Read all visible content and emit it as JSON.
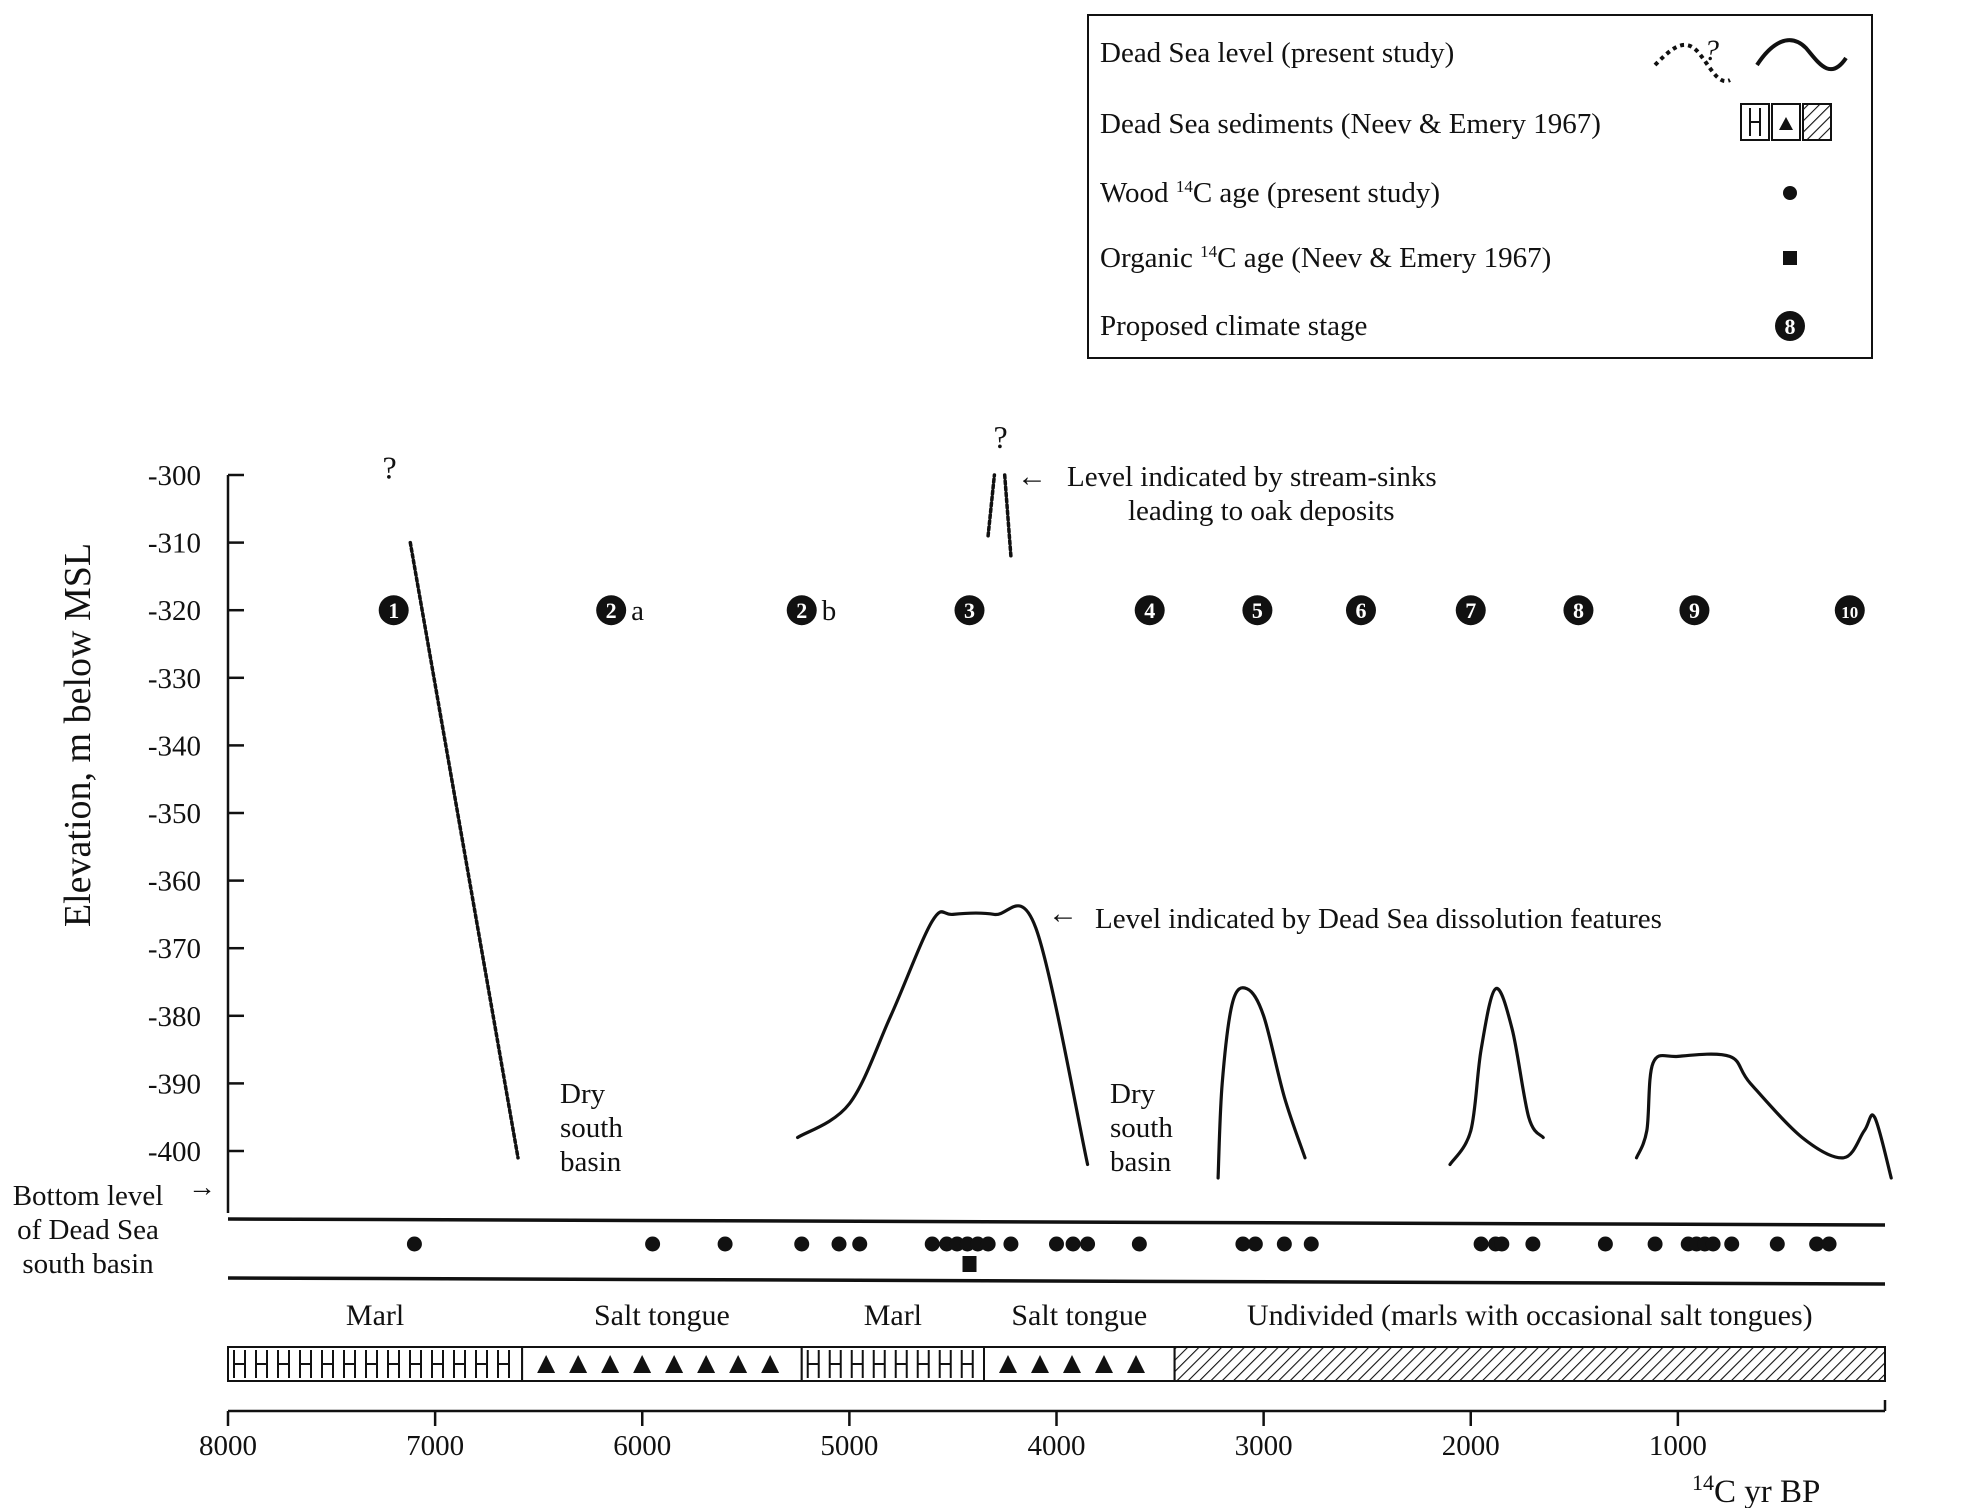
{
  "chart_data": {
    "type": "line",
    "title": "",
    "ylabel": "Elevation, m below MSL",
    "xlabel_main": "14",
    "xlabel_rest": "C yr BP",
    "xlim": [
      8000,
      0
    ],
    "ylim": [
      -300,
      -400
    ],
    "grid": false,
    "x_ticks": [
      "8000",
      "7000",
      "6000",
      "5000",
      "4000",
      "3000",
      "2000",
      "1000"
    ],
    "y_ticks": [
      "-300",
      "-310",
      "-320",
      "-330",
      "-340",
      "-350",
      "-360",
      "-370",
      "-380",
      "-390",
      "-400"
    ],
    "legend": {
      "placement": "top-right",
      "entries": [
        {
          "label": "Dead Sea level (present study)",
          "symbol": "wave-dashed-and-solid",
          "mark": "?"
        },
        {
          "label": "Dead Sea sediments (Neev & Emery 1967)",
          "symbol": "sediment-boxes"
        },
        {
          "label": "Wood 14C age (present study)",
          "symbol": "circle"
        },
        {
          "label": "Organic 14C age (Neev & Emery 1967)",
          "symbol": "square"
        },
        {
          "label": "Proposed climate stage",
          "symbol": "numbered-circle",
          "mark": "8"
        }
      ]
    },
    "level_curves": [
      {
        "style": "dashed",
        "points": [
          [
            7120,
            -310
          ],
          [
            6600,
            -401
          ]
        ]
      },
      {
        "style": "dashed",
        "points": [
          [
            4330,
            -309
          ],
          [
            4300,
            -300
          ]
        ]
      },
      {
        "style": "dashed",
        "points": [
          [
            4250,
            -300
          ],
          [
            4220,
            -312
          ]
        ]
      },
      {
        "style": "solid",
        "points": [
          [
            5250,
            -398
          ],
          [
            5000,
            -393
          ],
          [
            4800,
            -380
          ],
          [
            4600,
            -366
          ],
          [
            4500,
            -365
          ],
          [
            4300,
            -365
          ],
          [
            4100,
            -367
          ],
          [
            3850,
            -402
          ]
        ]
      },
      {
        "style": "solid",
        "points": [
          [
            3220,
            -404
          ],
          [
            3200,
            -390
          ],
          [
            3150,
            -378
          ],
          [
            3080,
            -376
          ],
          [
            3000,
            -380
          ],
          [
            2900,
            -392
          ],
          [
            2800,
            -401
          ]
        ]
      },
      {
        "style": "solid",
        "points": [
          [
            2100,
            -402
          ],
          [
            2000,
            -397
          ],
          [
            1950,
            -385
          ],
          [
            1880,
            -376
          ],
          [
            1800,
            -382
          ],
          [
            1720,
            -395
          ],
          [
            1650,
            -398
          ]
        ]
      },
      {
        "style": "solid",
        "points": [
          [
            1200,
            -401
          ],
          [
            1150,
            -397
          ],
          [
            1120,
            -387
          ],
          [
            1000,
            -386
          ],
          [
            750,
            -386
          ],
          [
            650,
            -390
          ],
          [
            400,
            -398
          ],
          [
            200,
            -401
          ],
          [
            100,
            -397
          ],
          [
            50,
            -395
          ],
          [
            -30,
            -404
          ]
        ]
      }
    ],
    "curve_marks": [
      {
        "text": "?",
        "x": 7220,
        "y": -300.5
      },
      {
        "text": "?",
        "x": 4270,
        "y": -296
      }
    ],
    "climate_stages": [
      {
        "label": "1",
        "suffix": "",
        "x": 7200
      },
      {
        "label": "2",
        "suffix": "a",
        "x": 6150
      },
      {
        "label": "2",
        "suffix": "b",
        "x": 5230
      },
      {
        "label": "3",
        "suffix": "",
        "x": 4420
      },
      {
        "label": "4",
        "suffix": "",
        "x": 3550
      },
      {
        "label": "5",
        "suffix": "",
        "x": 3030
      },
      {
        "label": "6",
        "suffix": "",
        "x": 2530
      },
      {
        "label": "7",
        "suffix": "",
        "x": 2000
      },
      {
        "label": "8",
        "suffix": "",
        "x": 1480
      },
      {
        "label": "9",
        "suffix": "",
        "x": 920
      },
      {
        "label": "10",
        "suffix": "",
        "x": 170
      }
    ],
    "climate_stage_y": -320,
    "wood_ages": [
      7100,
      5950,
      5600,
      5230,
      5050,
      4950,
      4600,
      4530,
      4480,
      4430,
      4380,
      4330,
      4220,
      4000,
      3920,
      3850,
      3600,
      3100,
      3040,
      2900,
      2770,
      1950,
      1880,
      1850,
      1700,
      1350,
      1110,
      950,
      910,
      870,
      830,
      740,
      520,
      330,
      270
    ],
    "organic_ages": [
      4420
    ],
    "sediment_units": [
      {
        "label": "Marl",
        "from": 8000,
        "to": 6580,
        "pattern": "marl"
      },
      {
        "label": "Salt tongue",
        "from": 6580,
        "to": 5230,
        "pattern": "salt"
      },
      {
        "label": "Marl",
        "from": 5230,
        "to": 4350,
        "pattern": "marl"
      },
      {
        "label": "Salt tongue",
        "from": 4350,
        "to": 3430,
        "pattern": "salt"
      },
      {
        "label": "Undivided (marls with occasional salt tongues)",
        "from": 3430,
        "to": 0,
        "pattern": "hatch"
      }
    ],
    "annotations": {
      "stream_sinks_line1": "Level indicated by stream-sinks",
      "stream_sinks_line2": "leading to oak deposits",
      "dissolution": "Level indicated by Dead Sea dissolution features",
      "dry_basin": [
        "Dry",
        "south",
        "basin"
      ],
      "bottom_level": [
        "Bottom level",
        "of Dead Sea",
        "south basin"
      ]
    }
  }
}
